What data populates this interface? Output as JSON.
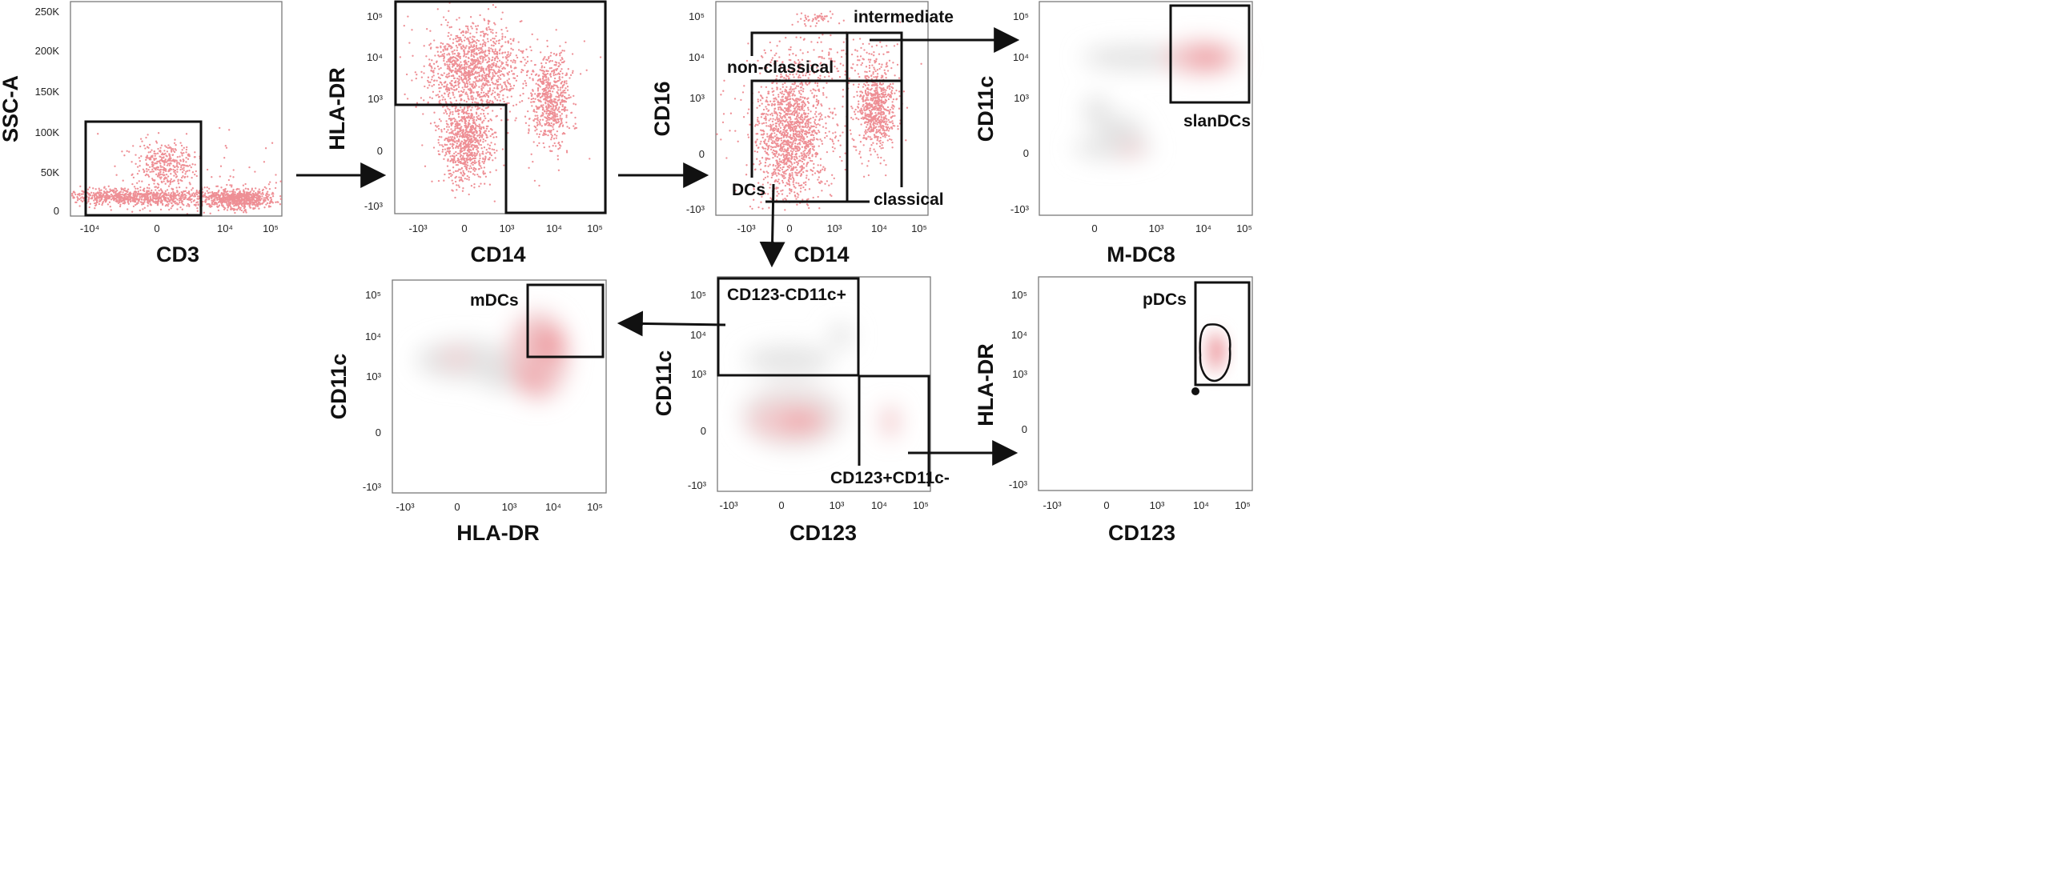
{
  "panels": {
    "p1": {
      "xlabel": "CD3",
      "ylabel": "SSC-A",
      "xticks": [
        "-10⁴",
        "0",
        "10⁴",
        "10⁵"
      ],
      "yticks": [
        "250K",
        "200K",
        "150K",
        "100K",
        "50K",
        "0"
      ],
      "plot_type": "dot"
    },
    "p2": {
      "xlabel": "CD14",
      "ylabel": "HLA-DR",
      "xticks": [
        "-10³",
        "0",
        "10³",
        "10⁴",
        "10⁵"
      ],
      "yticks": [
        "10⁵",
        "10⁴",
        "10³",
        "0",
        "-10³"
      ],
      "plot_type": "dot"
    },
    "p3": {
      "xlabel": "CD14",
      "ylabel": "CD16",
      "xticks": [
        "-10³",
        "0",
        "10³",
        "10⁴",
        "10⁵"
      ],
      "yticks": [
        "10⁵",
        "10⁴",
        "10³",
        "0",
        "-10³"
      ],
      "plot_type": "dot",
      "gates": {
        "intermediate": "intermediate",
        "nonclassical": "non-classical",
        "dcs": "DCs",
        "classical": "classical"
      }
    },
    "p4": {
      "xlabel": "M-DC8",
      "ylabel": "CD11c",
      "xticks": [
        "0",
        "10³",
        "10⁴",
        "10⁵"
      ],
      "yticks": [
        "10⁵",
        "10⁴",
        "10³",
        "0",
        "-10³"
      ],
      "plot_type": "density",
      "gates": {
        "slandcs": "slanDCs"
      }
    },
    "p5": {
      "xlabel": "HLA-DR",
      "ylabel": "CD11c",
      "xticks": [
        "-10³",
        "0",
        "10³",
        "10⁴",
        "10⁵"
      ],
      "yticks": [
        "10⁵",
        "10⁴",
        "10³",
        "0",
        "-10³"
      ],
      "plot_type": "density",
      "gates": {
        "mdcs": "mDCs"
      }
    },
    "p6": {
      "xlabel": "CD123",
      "ylabel": "CD11c",
      "xticks": [
        "-10³",
        "0",
        "10³",
        "10⁴",
        "10⁵"
      ],
      "yticks": [
        "10⁵",
        "10⁴",
        "10³",
        "0",
        "-10³"
      ],
      "plot_type": "density",
      "gates": {
        "cd123neg": "CD123-CD11c+",
        "cd123pos": "CD123+CD11c-"
      }
    },
    "p7": {
      "xlabel": "CD123",
      "ylabel": "HLA-DR",
      "xticks": [
        "-10³",
        "0",
        "10³",
        "10⁴",
        "10⁵"
      ],
      "yticks": [
        "10⁵",
        "10⁴",
        "10³",
        "0",
        "-10³"
      ],
      "plot_type": "density",
      "gates": {
        "pdcs": "pDCs"
      }
    }
  },
  "flow": [
    "CD3 vs SSC-A gate → CD14 vs HLA-DR",
    "CD14 vs HLA-DR gate → CD14 vs CD16",
    "intermediate → M-DC8 vs CD11c",
    "DCs → CD123 vs CD11c",
    "CD123-CD11c+ → HLA-DR vs CD11c",
    "CD123+CD11c- → CD123 vs HLA-DR"
  ],
  "colors": {
    "dots": "#ee8f95",
    "density_low": "#e4e4e4",
    "density_high": "#f0868e",
    "gate": "#111111"
  }
}
